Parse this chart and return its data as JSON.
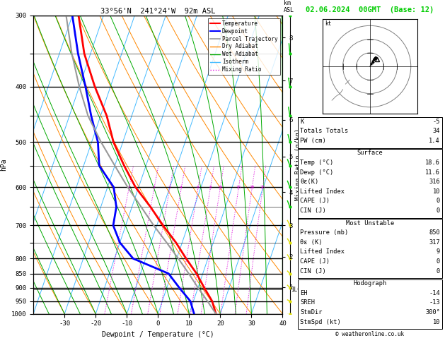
{
  "title_left": "33°56'N  241°24'W  92m ASL",
  "title_right": "02.06.2024  00GMT  (Base: 12)",
  "xlabel": "Dewpoint / Temperature (°C)",
  "ylabel_left": "hPa",
  "background_color": "#ffffff",
  "plot_bg": "#ffffff",
  "pressure_levels": [
    300,
    350,
    400,
    450,
    500,
    550,
    600,
    650,
    700,
    750,
    800,
    850,
    900,
    950,
    1000
  ],
  "pressure_major": [
    300,
    400,
    500,
    600,
    700,
    800,
    850,
    900,
    950,
    1000
  ],
  "temp_min": -40,
  "temp_max": 40,
  "skew": 27.0,
  "temperature_data": {
    "pressure": [
      1000,
      950,
      900,
      850,
      800,
      750,
      700,
      650,
      600,
      550,
      500,
      450,
      400,
      350,
      300
    ],
    "temp": [
      18.6,
      16.0,
      12.0,
      8.0,
      3.0,
      -2.0,
      -8.0,
      -14.0,
      -21.0,
      -27.0,
      -33.0,
      -38.0,
      -45.0,
      -52.0,
      -58.0
    ],
    "color": "#ff0000",
    "lw": 2.0
  },
  "dewpoint_data": {
    "pressure": [
      1000,
      950,
      900,
      850,
      800,
      750,
      700,
      650,
      600,
      550,
      500,
      450,
      400,
      350,
      300
    ],
    "temp": [
      11.6,
      9.0,
      4.0,
      -1.0,
      -14.0,
      -20.0,
      -24.0,
      -25.0,
      -28.0,
      -35.0,
      -38.0,
      -43.0,
      -48.0,
      -54.0,
      -60.0
    ],
    "color": "#0000ff",
    "lw": 2.0
  },
  "parcel_data": {
    "pressure": [
      1000,
      950,
      900,
      850,
      800,
      750,
      700,
      650,
      600,
      550,
      500,
      450,
      400,
      350,
      300
    ],
    "temp": [
      18.6,
      14.5,
      10.0,
      5.5,
      0.5,
      -5.0,
      -11.0,
      -17.0,
      -23.5,
      -30.0,
      -37.0,
      -44.0,
      -50.0,
      -56.0,
      -62.0
    ],
    "color": "#999999",
    "lw": 1.5
  },
  "isotherm_color": "#44bbff",
  "isotherm_lw": 0.7,
  "dry_adiabat_color": "#ff8800",
  "dry_adiabat_lw": 0.7,
  "wet_adiabat_color": "#00aa00",
  "wet_adiabat_lw": 0.7,
  "mixing_ratio_color": "#dd00dd",
  "mixing_ratio_lw": 0.7,
  "mixing_ratios": [
    1,
    2,
    3,
    4,
    6,
    8,
    10,
    15,
    20,
    25
  ],
  "km_ticks": [
    1,
    2,
    3,
    4,
    5,
    6,
    7,
    8
  ],
  "km_pressures": [
    898,
    794,
    700,
    612,
    530,
    457,
    390,
    328
  ],
  "lcl_pressure": 906,
  "lcl_label": "1LCL",
  "wind_barb_pressures": [
    300,
    350,
    400,
    450,
    500,
    550,
    600,
    650,
    700,
    750,
    800,
    850,
    900,
    950,
    1000
  ],
  "wind_barb_u": [
    2,
    2,
    3,
    3,
    4,
    5,
    5,
    5,
    5,
    5,
    5,
    5,
    5,
    5,
    5
  ],
  "wind_barb_v": [
    8,
    8,
    7,
    7,
    6,
    5,
    5,
    5,
    4,
    3,
    3,
    2,
    2,
    1,
    0
  ],
  "wind_barb_colors_green": [
    300,
    350,
    400,
    450,
    500,
    550,
    600,
    650
  ],
  "wind_barb_colors_yellow": [
    700,
    750,
    800,
    850,
    900,
    950,
    1000
  ],
  "hodograph_circles": [
    10,
    20,
    30
  ],
  "stats": {
    "K": -5,
    "Totals_Totals": 34,
    "PW_cm": 1.4,
    "Surface_Temp": 18.6,
    "Surface_Dewp": 11.6,
    "Surface_ThetaE": 316,
    "Surface_LI": 10,
    "Surface_CAPE": 0,
    "Surface_CIN": 0,
    "MU_Pressure": 850,
    "MU_ThetaE": 317,
    "MU_LI": 9,
    "MU_CAPE": 0,
    "MU_CIN": 0,
    "EH": -14,
    "SREH": -13,
    "StmDir": "300°",
    "StmSpd": 10
  }
}
